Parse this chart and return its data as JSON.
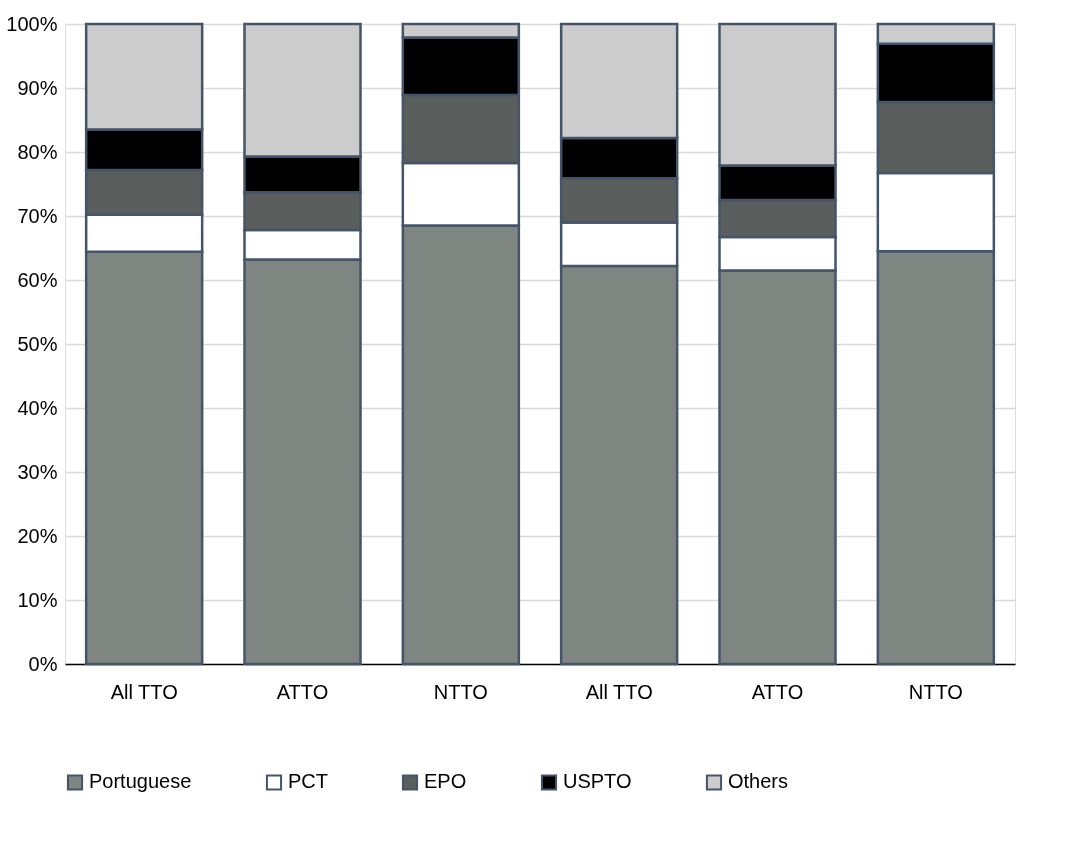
{
  "chart_data": {
    "type": "bar",
    "stacked": true,
    "categories": [
      "All TTO",
      "ATTO",
      "NTTO",
      "All TTO",
      "ATTO",
      "NTTO"
    ],
    "series": [
      {
        "name": "Portuguese",
        "color": "#7f8581",
        "values": [
          64.4,
          63.2,
          68.5,
          62.2,
          61.5,
          64.5
        ]
      },
      {
        "name": "PCT",
        "color": "#ffffff",
        "values": [
          5.8,
          4.6,
          9.8,
          6.8,
          5.2,
          12.2
        ]
      },
      {
        "name": "EPO",
        "color": "#5a5e5c",
        "values": [
          7.0,
          5.9,
          10.6,
          6.9,
          5.8,
          11.1
        ]
      },
      {
        "name": "USPTO",
        "color": "#000000",
        "values": [
          6.3,
          5.6,
          9.0,
          6.3,
          5.4,
          9.1
        ]
      },
      {
        "name": "Others",
        "color": "#cccccc",
        "values": [
          16.5,
          20.7,
          2.1,
          17.8,
          22.1,
          3.1
        ]
      }
    ],
    "ylim": [
      0,
      100
    ],
    "yticks": [
      {
        "value": 0,
        "label": "0%"
      },
      {
        "value": 10,
        "label": "10%"
      },
      {
        "value": 20,
        "label": "20%"
      },
      {
        "value": 30,
        "label": "30%"
      },
      {
        "value": 40,
        "label": "40%"
      },
      {
        "value": 50,
        "label": "50%"
      },
      {
        "value": 60,
        "label": "60%"
      },
      {
        "value": 70,
        "label": "70%"
      },
      {
        "value": 80,
        "label": "80%"
      },
      {
        "value": 90,
        "label": "90%"
      },
      {
        "value": 100,
        "label": "100%"
      }
    ],
    "grid": "y",
    "legend": "bottom"
  }
}
